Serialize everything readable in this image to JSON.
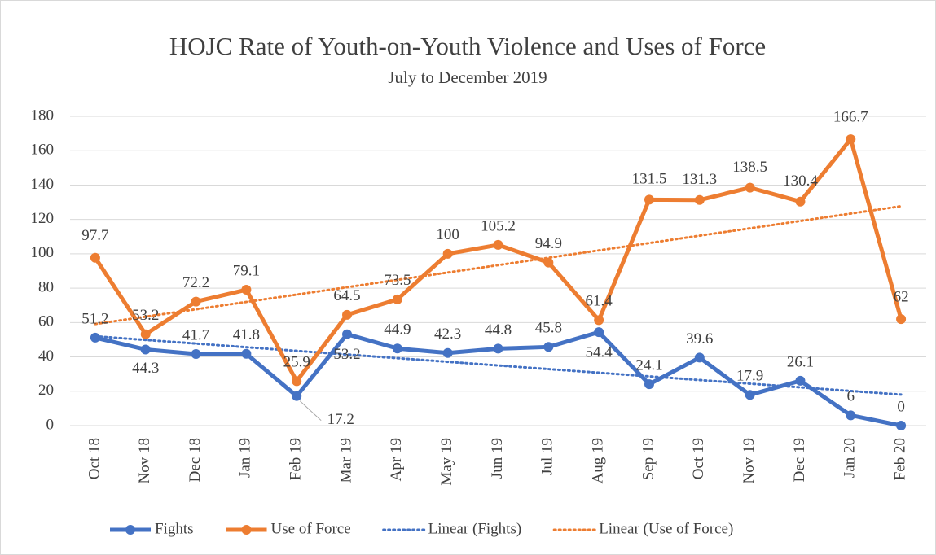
{
  "chart_data": {
    "type": "line",
    "title": "HOJC Rate of Youth-on-Youth Violence and Uses of Force",
    "subtitle": "July to December 2019",
    "categories": [
      "Oct 18",
      "Nov 18",
      "Dec 18",
      "Jan 19",
      "Feb 19",
      "Mar 19",
      "Apr 19",
      "May 19",
      "Jun 19",
      "Jul 19",
      "Aug 19",
      "Sep 19",
      "Oct 19",
      "Nov 19",
      "Dec 19",
      "Jan 20",
      "Feb 20"
    ],
    "series": [
      {
        "name": "Fights",
        "color": "#4472c4",
        "trendline": "Linear (Fights)",
        "values": [
          51.2,
          44.3,
          41.7,
          41.8,
          17.2,
          53.2,
          44.9,
          42.3,
          44.8,
          45.8,
          54.4,
          24.1,
          39.6,
          17.9,
          26.1,
          6,
          0
        ]
      },
      {
        "name": "Use of Force",
        "color": "#ed7d31",
        "trendline": "Linear (Use of Force)",
        "values": [
          97.7,
          53.2,
          72.2,
          79.1,
          25.9,
          64.5,
          73.5,
          100,
          105.2,
          94.9,
          61.4,
          131.5,
          131.3,
          138.5,
          130.4,
          166.7,
          62
        ]
      }
    ],
    "ylim": [
      0,
      180
    ],
    "yticks": [
      0,
      20,
      40,
      60,
      80,
      100,
      120,
      140,
      160,
      180
    ],
    "grid": true,
    "legend": "bottom"
  }
}
